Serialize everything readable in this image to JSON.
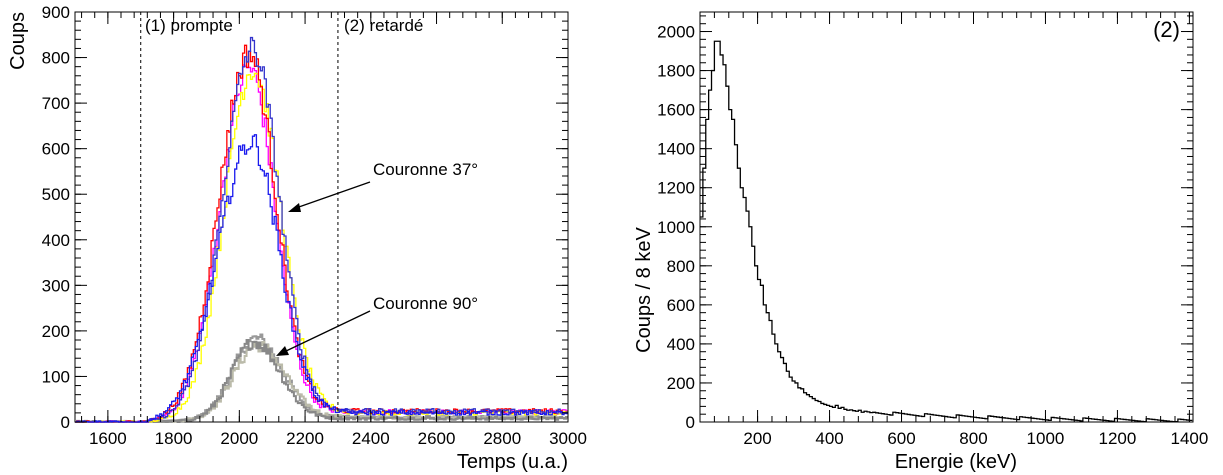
{
  "chart_data": [
    {
      "type": "line",
      "style": "step-histogram",
      "xlabel": "Temps (u.a.)",
      "ylabel": "Coups",
      "xlim": [
        1500,
        3000
      ],
      "ylim": [
        0,
        900
      ],
      "xticks": [
        1600,
        1800,
        2000,
        2200,
        2400,
        2600,
        2800,
        3000
      ],
      "yticks": [
        0,
        100,
        200,
        300,
        400,
        500,
        600,
        700,
        800,
        900
      ],
      "xtick_labels": [
        "1600",
        "1800",
        "2000",
        "2200",
        "2400",
        "2600",
        "2800",
        "3000"
      ],
      "ytick_labels": [
        "0",
        "100",
        "200",
        "300",
        "400",
        "500",
        "600",
        "700",
        "800",
        "900"
      ],
      "grid": false,
      "legend": "none",
      "vlines": [
        {
          "x": 1700,
          "label": "(1) prompte",
          "style": "dashed"
        },
        {
          "x": 2300,
          "label": "(2) retardé",
          "style": "dashed"
        }
      ],
      "annotations": [
        {
          "text": "Couronne 37°",
          "x": 2280,
          "y": 460
        },
        {
          "text": "Couronne 90°",
          "x": 2150,
          "y": 150
        }
      ],
      "series": [
        {
          "color": "#ff00ff",
          "peak_x": 2030,
          "peak": 760,
          "sigma_left": 88,
          "sigma_right": 78,
          "tail": 22,
          "group": "37"
        },
        {
          "color": "#ffff00",
          "peak_x": 2040,
          "peak": 760,
          "sigma_left": 85,
          "sigma_right": 85,
          "tail": 20,
          "group": "37"
        },
        {
          "color": "#ff0000",
          "peak_x": 2030,
          "peak": 790,
          "sigma_left": 92,
          "sigma_right": 80,
          "tail": 24,
          "group": "37"
        },
        {
          "color": "#3333cc",
          "peak_x": 2040,
          "peak": 800,
          "sigma_left": 90,
          "sigma_right": 80,
          "tail": 24,
          "group": "37"
        },
        {
          "color": "#1a1aee",
          "peak_x": 2035,
          "peak": 600,
          "sigma_left": 100,
          "sigma_right": 85,
          "tail": 20,
          "group": "37"
        },
        {
          "color": "#999999",
          "peak_x": 2050,
          "peak": 175,
          "sigma_left": 70,
          "sigma_right": 80,
          "tail": 10,
          "group": "90"
        },
        {
          "color": "#bbbbaa",
          "peak_x": 2055,
          "peak": 160,
          "sigma_left": 72,
          "sigma_right": 82,
          "tail": 10,
          "group": "90"
        },
        {
          "color": "#888888",
          "peak_x": 2045,
          "peak": 170,
          "sigma_left": 68,
          "sigma_right": 78,
          "tail": 8,
          "group": "90"
        }
      ]
    },
    {
      "type": "line",
      "style": "step-histogram",
      "xlabel": "Energie (keV)",
      "ylabel": "Coups / 8 keV",
      "panel_label": "(2)",
      "xlim": [
        40,
        1410
      ],
      "ylim": [
        0,
        2100
      ],
      "xticks": [
        200,
        400,
        600,
        800,
        1000,
        1200,
        1400
      ],
      "yticks": [
        0,
        200,
        400,
        600,
        800,
        1000,
        1200,
        1400,
        1600,
        1800,
        2000
      ],
      "xtick_labels": [
        "200",
        "400",
        "600",
        "800",
        "1000",
        "1200",
        "1400"
      ],
      "ytick_labels": [
        "0",
        "200",
        "400",
        "600",
        "800",
        "1000",
        "1200",
        "1400",
        "1600",
        "1800",
        "2000"
      ],
      "grid": false,
      "legend": "none",
      "series": [
        {
          "color": "#000000",
          "bin_width": 8,
          "x_start": 40,
          "values": [
            1050,
            1300,
            1550,
            1700,
            1800,
            1950,
            1950,
            1880,
            1830,
            1720,
            1600,
            1550,
            1420,
            1300,
            1200,
            1150,
            1080,
            1000,
            900,
            800,
            730,
            700,
            600,
            560,
            520,
            450,
            400,
            360,
            330,
            300,
            260,
            230,
            210,
            200,
            175,
            170,
            150,
            140,
            130,
            120,
            110,
            105,
            95,
            90,
            85,
            80,
            75,
            85,
            70,
            75,
            65,
            60,
            62,
            58,
            55,
            60,
            50,
            55,
            52,
            48
          ]
        }
      ]
    }
  ]
}
